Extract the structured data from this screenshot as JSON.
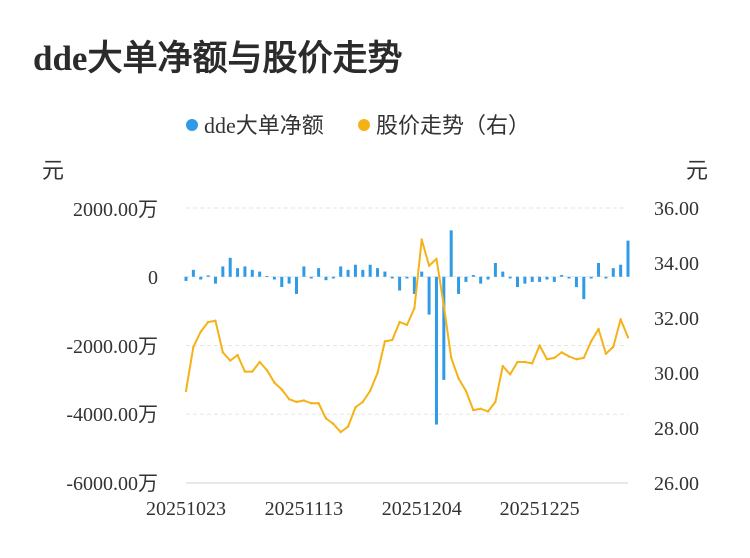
{
  "title": "dde大单净额与股价走势",
  "chart_data": {
    "type": "bar+line",
    "legend": [
      {
        "label": "dde大单净额",
        "color": "#2f9be6"
      },
      {
        "label": "股价走势（右）",
        "color": "#f5b216"
      }
    ],
    "left_axis": {
      "unit": "元",
      "ticks": [
        "2000.00万",
        "0",
        "-2000.00万",
        "-4000.00万",
        "-6000.00万"
      ],
      "range": [
        -6000,
        2000
      ]
    },
    "right_axis": {
      "unit": "元",
      "ticks": [
        "36.00",
        "34.00",
        "32.00",
        "30.00",
        "28.00",
        "26.00"
      ],
      "range": [
        26,
        36
      ]
    },
    "x_tick_labels": [
      "20251023",
      "20251113",
      "20251204",
      "20251225"
    ],
    "x_tick_index": [
      0,
      16,
      32,
      48
    ],
    "grid": "horizontal dashed",
    "legend_position": "top-center",
    "series": [
      {
        "name": "dde大单净额",
        "type": "bar",
        "unit": "万",
        "values": [
          -120,
          200,
          -80,
          40,
          -200,
          300,
          550,
          250,
          300,
          200,
          150,
          20,
          -80,
          -300,
          -200,
          -500,
          300,
          -50,
          250,
          -100,
          -50,
          300,
          200,
          350,
          200,
          350,
          250,
          150,
          -50,
          -400,
          -50,
          -500,
          150,
          -1100,
          -4300,
          -3000,
          1350,
          -500,
          -150,
          50,
          -200,
          -80,
          400,
          150,
          -50,
          -300,
          -200,
          -150,
          -150,
          -80,
          -150,
          50,
          -50,
          -300,
          -650,
          -50,
          400,
          -50,
          250,
          350,
          1050
        ]
      },
      {
        "name": "股价走势（右）",
        "type": "line",
        "unit": "元",
        "values": [
          29.35,
          30.95,
          31.5,
          31.85,
          31.9,
          30.75,
          30.45,
          30.65,
          30.05,
          30.05,
          30.4,
          30.1,
          29.65,
          29.4,
          29.05,
          28.95,
          29.0,
          28.9,
          28.9,
          28.35,
          28.15,
          27.85,
          28.05,
          28.75,
          28.95,
          29.35,
          30.0,
          31.15,
          31.2,
          31.85,
          31.75,
          32.35,
          34.85,
          33.9,
          34.15,
          32.45,
          30.55,
          29.8,
          29.35,
          28.65,
          28.7,
          28.6,
          28.95,
          30.25,
          29.95,
          30.4,
          30.4,
          30.35,
          31.0,
          30.5,
          30.55,
          30.75,
          30.6,
          30.5,
          30.55,
          31.15,
          31.6,
          30.7,
          30.95,
          31.95,
          31.3
        ]
      }
    ]
  }
}
